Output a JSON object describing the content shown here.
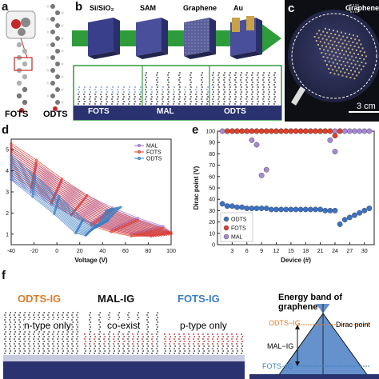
{
  "panels": {
    "a": {
      "letter": "a",
      "labels": [
        "FOTS",
        "ODTS"
      ],
      "label_colors": [
        "#3b7fc4",
        "#e07a2a"
      ]
    },
    "b": {
      "letter": "b",
      "steps": [
        "Si/SiO₂",
        "SAM",
        "Graphene",
        "Au"
      ],
      "bands": [
        "FOTS",
        "MAL",
        "ODTS"
      ]
    },
    "c": {
      "letter": "c",
      "label": "Graphene",
      "scale": "3 cm"
    },
    "d": {
      "letter": "d",
      "legend": [
        "MAL",
        "FOTS",
        "ODTS"
      ],
      "xlabel": "Voltage (V)",
      "xticks": [
        "-40",
        "-20",
        "0",
        "20",
        "40",
        "60",
        "80",
        "100"
      ],
      "yticks": [
        "1",
        "2",
        "3",
        "4",
        "5"
      ]
    },
    "e": {
      "letter": "e",
      "ylabel": "Dirac point (V)",
      "xlabel": "Device (#)",
      "yticks": [
        "0",
        "10",
        "20",
        "30",
        "40",
        "50",
        "60",
        "70",
        "80",
        "90",
        "100"
      ],
      "xticks": [
        "3",
        "6",
        "9",
        "12",
        "15",
        "18",
        "21",
        "24",
        "27",
        "30"
      ],
      "legend": [
        "ODTS",
        "FOTS",
        "MAL"
      ]
    },
    "f": {
      "letter": "f",
      "titles": [
        "ODTS-IG",
        "MAL-IG",
        "FOTS-IG"
      ],
      "title_colors": [
        "#e07a2a",
        "#111111",
        "#3b7fc4"
      ],
      "notes": [
        "n-type only",
        "co-exist",
        "p-type only"
      ],
      "band_title": "Energy band of graphene",
      "band_labels": [
        "ODTS−IG",
        "Dirac point",
        "MAL−IG",
        "FOTS−IG"
      ]
    }
  },
  "colors": {
    "odts": "#e07a2a",
    "fots": "#3b7fc4",
    "mal": "#9b6fc9",
    "red": "#e03a2a",
    "navy": "#2a3270",
    "green": "#2e9c3a"
  },
  "chart_data": [
    {
      "type": "line",
      "panel": "d",
      "xlabel": "Voltage (V)",
      "ylabel": "",
      "xlim": [
        -40,
        100
      ],
      "ylim": [
        0.5,
        5.5
      ],
      "series": [
        {
          "name": "MAL",
          "x": [
            -40,
            -20,
            0,
            20,
            40,
            60,
            80,
            100
          ],
          "y": [
            4.4,
            3.7,
            3.0,
            2.4,
            1.9,
            1.5,
            1.2,
            1.0
          ]
        },
        {
          "name": "FOTS",
          "x": [
            -40,
            -20,
            0,
            20,
            40,
            60,
            80,
            100
          ],
          "y": [
            4.6,
            3.9,
            3.1,
            2.4,
            1.8,
            1.4,
            1.1,
            1.0
          ]
        },
        {
          "name": "ODTS",
          "x": [
            -40,
            -20,
            0,
            20,
            30,
            40,
            50
          ],
          "y": [
            4.2,
            3.3,
            2.4,
            1.4,
            1.2,
            1.5,
            2.2
          ]
        }
      ]
    },
    {
      "type": "scatter",
      "panel": "e",
      "xlabel": "Device (#)",
      "ylabel": "Dirac point (V)",
      "xlim": [
        0,
        32
      ],
      "ylim": [
        0,
        100
      ],
      "series": [
        {
          "name": "ODTS",
          "x": [
            1,
            2,
            3,
            4,
            5,
            6,
            7,
            8,
            9,
            10,
            11,
            12,
            13,
            14,
            15,
            16,
            17,
            18,
            19,
            20,
            21,
            22,
            23,
            24,
            25,
            26,
            27,
            28,
            29,
            30,
            31
          ],
          "y": [
            36,
            34,
            34,
            33,
            33,
            32,
            32,
            32,
            32,
            32,
            31,
            31,
            31,
            31,
            31,
            31,
            31,
            31,
            31,
            31,
            31,
            30,
            30,
            30,
            18,
            22,
            24,
            26,
            28,
            30,
            32
          ]
        },
        {
          "name": "FOTS",
          "x": [
            2,
            3,
            4,
            5,
            6,
            7,
            8,
            9,
            10,
            11,
            12,
            13,
            14,
            15,
            16,
            17,
            18,
            19,
            20,
            21,
            22,
            23,
            24,
            25
          ],
          "y": [
            100,
            100,
            100,
            100,
            100,
            100,
            100,
            100,
            100,
            100,
            100,
            100,
            100,
            100,
            100,
            100,
            100,
            100,
            100,
            100,
            100,
            100,
            96,
            100
          ]
        },
        {
          "name": "MAL",
          "x": [
            1,
            2,
            3,
            4,
            5,
            6,
            7,
            8,
            9,
            10,
            11,
            12,
            13,
            14,
            15,
            16,
            17,
            18,
            19,
            20,
            21,
            22,
            23,
            24,
            25,
            26,
            27,
            28,
            29,
            30,
            31,
            7,
            8,
            9,
            10,
            23,
            24
          ],
          "y": [
            100,
            100,
            100,
            100,
            100,
            100,
            100,
            100,
            100,
            100,
            100,
            100,
            100,
            100,
            100,
            100,
            100,
            100,
            100,
            100,
            100,
            100,
            100,
            100,
            100,
            100,
            100,
            100,
            100,
            100,
            100,
            92,
            88,
            61,
            66,
            92,
            82
          ]
        }
      ]
    }
  ]
}
